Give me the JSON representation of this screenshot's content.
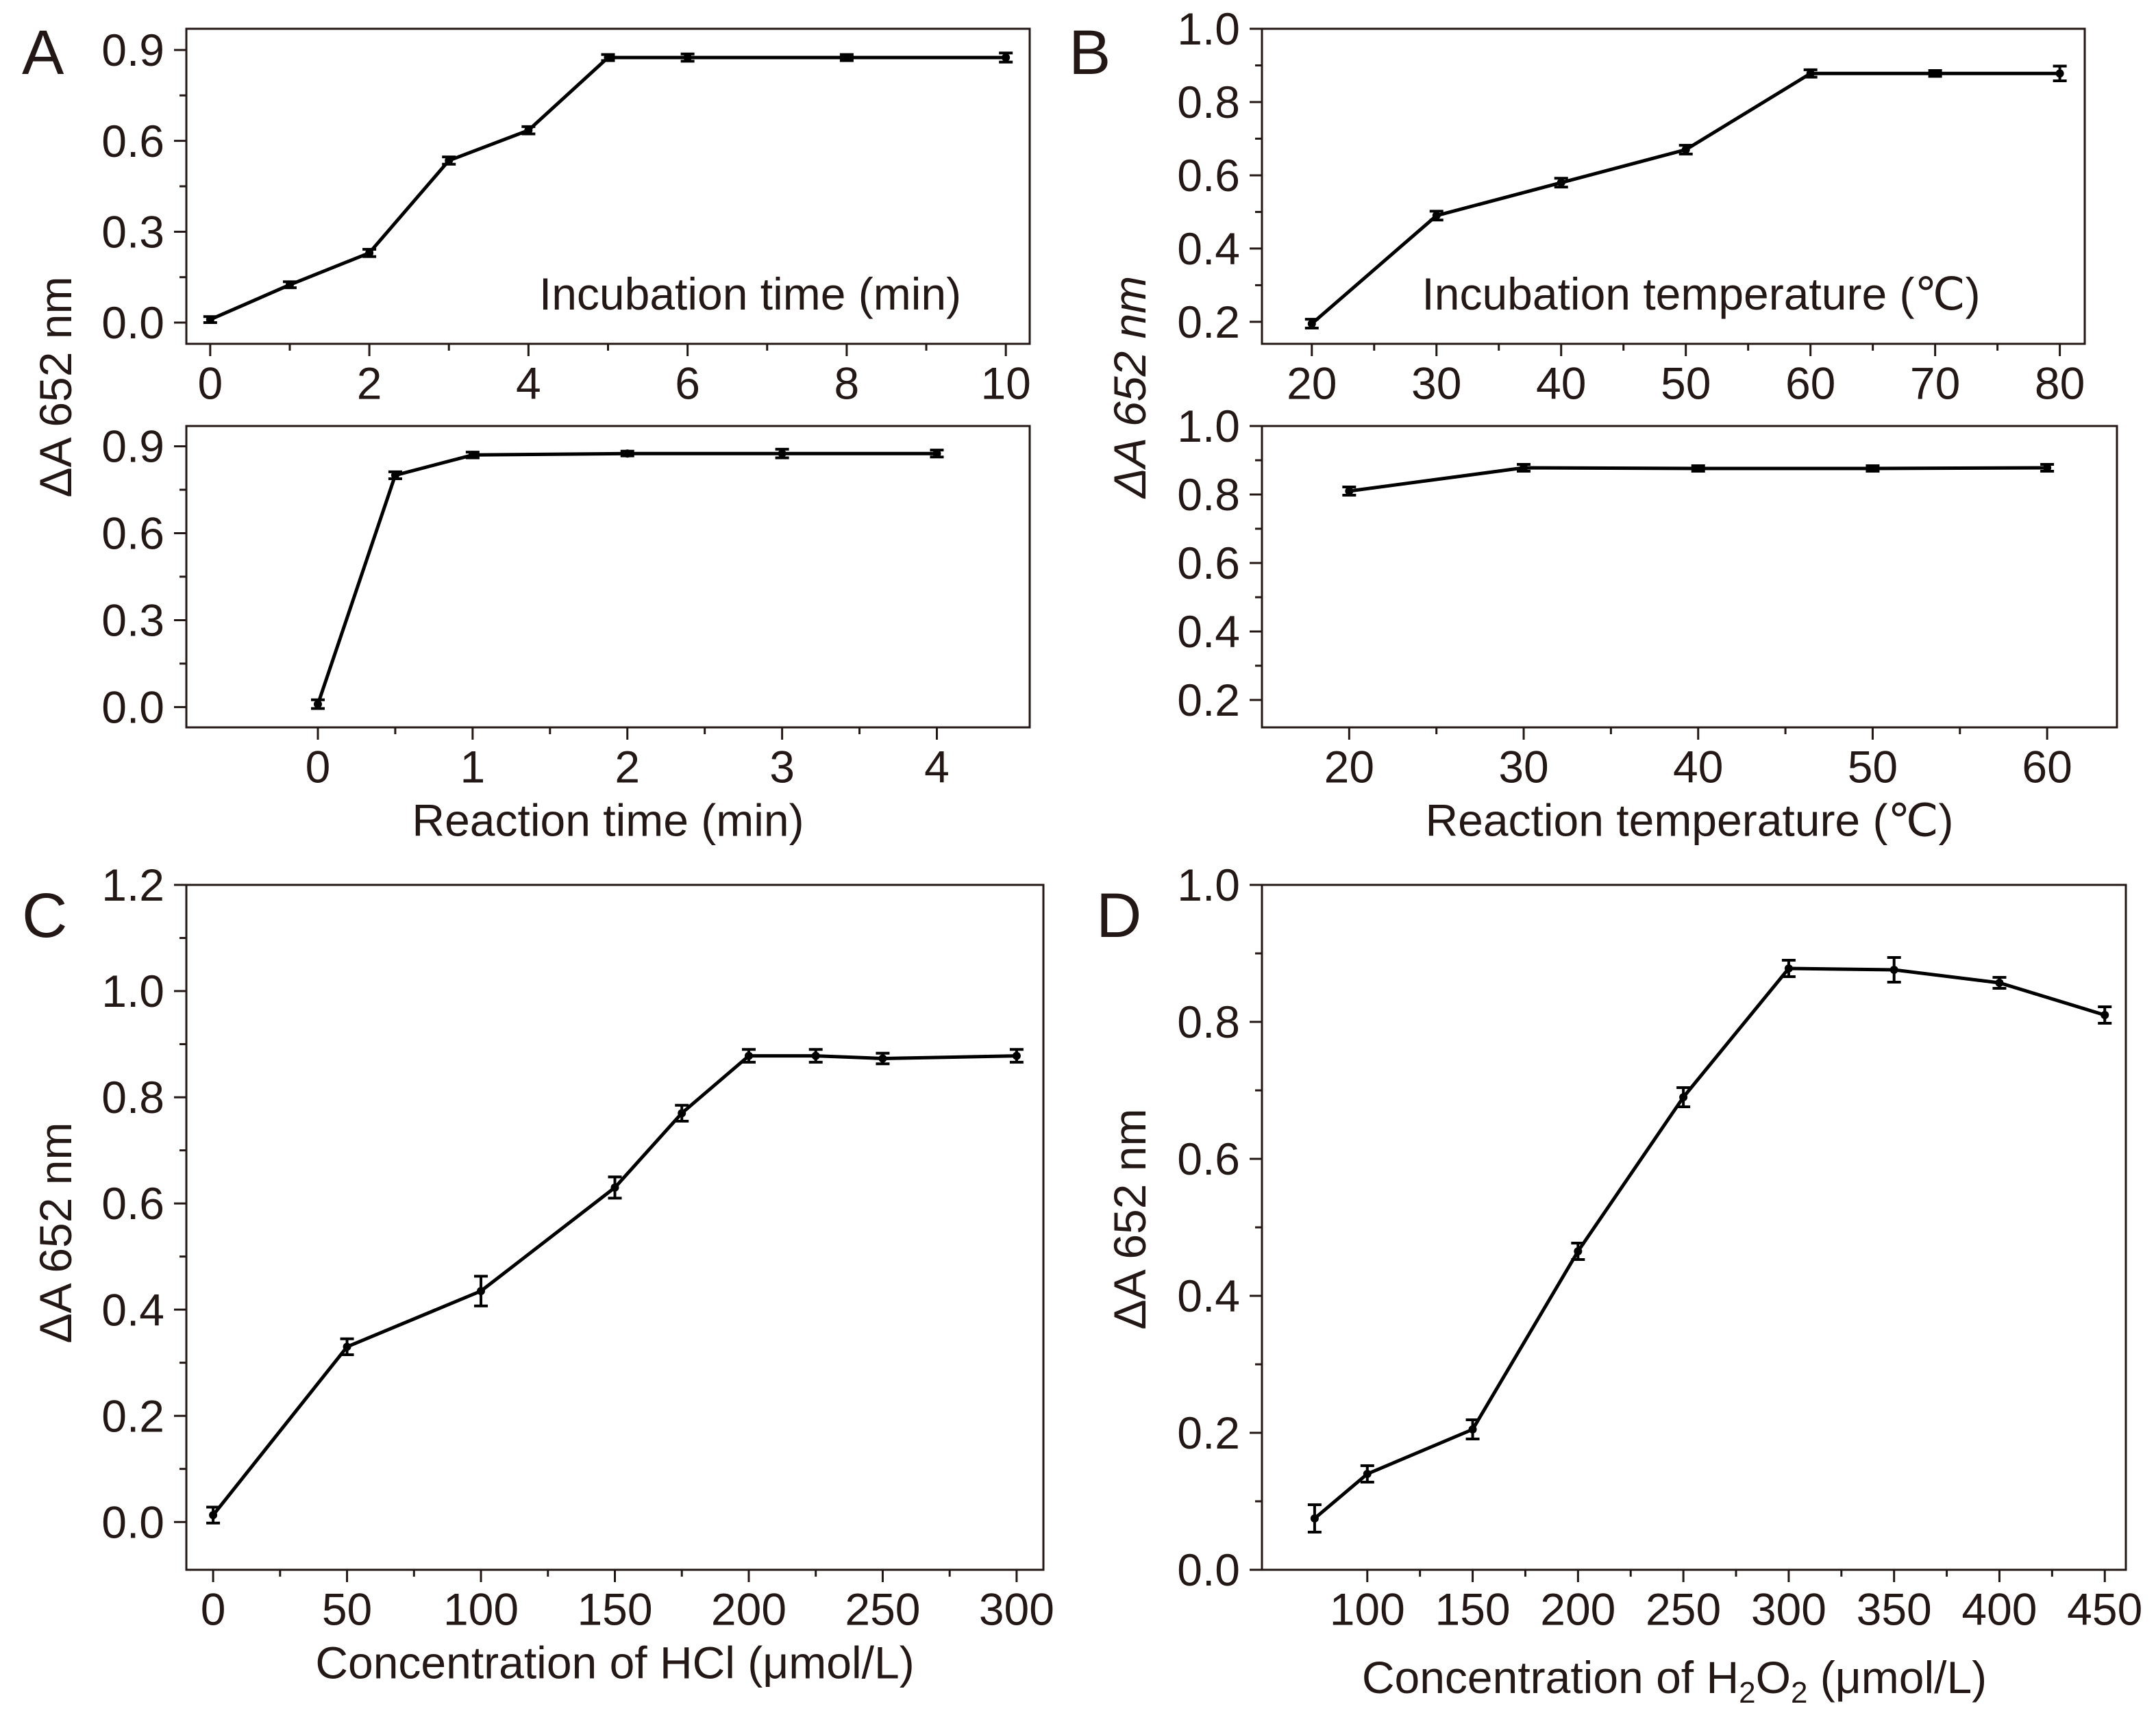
{
  "figure": {
    "panel_letters": [
      "A",
      "B",
      "C",
      "D"
    ]
  },
  "chart_data": [
    {
      "id": "A1",
      "panel": "A",
      "type": "line",
      "title": "",
      "inner_label": "Incubation time (min)",
      "xlabel": "",
      "ylabel": "ΔA 652 nm",
      "xlim": [
        -0.3,
        10.3
      ],
      "ylim": [
        -0.07,
        0.97
      ],
      "xticks": [
        0,
        2,
        4,
        6,
        8,
        10
      ],
      "yticks": [
        0.0,
        0.3,
        0.6,
        0.9
      ],
      "ytick_labels": [
        "0.0",
        "0.3",
        "0.6",
        "0.9"
      ],
      "x": [
        0,
        1,
        2,
        3,
        4,
        5,
        6,
        8,
        10
      ],
      "y": [
        0.01,
        0.125,
        0.23,
        0.535,
        0.635,
        0.875,
        0.875,
        0.875,
        0.875
      ],
      "err": [
        0.01,
        0.01,
        0.012,
        0.012,
        0.012,
        0.01,
        0.012,
        0.01,
        0.015
      ],
      "grid": false
    },
    {
      "id": "A2",
      "panel": "A",
      "type": "line",
      "title": "",
      "xlabel": "Reaction time (min)",
      "ylabel": "",
      "xlim": [
        -0.85,
        4.6
      ],
      "ylim": [
        -0.07,
        0.97
      ],
      "xticks": [
        0,
        1,
        2,
        3,
        4
      ],
      "yticks": [
        0.0,
        0.3,
        0.6,
        0.9
      ],
      "ytick_labels": [
        "0.0",
        "0.3",
        "0.6",
        "0.9"
      ],
      "x": [
        0,
        0.5,
        1,
        2,
        3,
        4
      ],
      "y": [
        0.01,
        0.8,
        0.87,
        0.875,
        0.875,
        0.875
      ],
      "err": [
        0.015,
        0.012,
        0.01,
        0.008,
        0.015,
        0.012
      ],
      "grid": false
    },
    {
      "id": "B1",
      "panel": "B",
      "type": "line",
      "title": "",
      "inner_label": "Incubation temperature (℃)",
      "xlabel": "",
      "ylabel": "ΔA 652 nm",
      "xlim": [
        16,
        82
      ],
      "ylim": [
        0.14,
        1.0
      ],
      "xticks": [
        20,
        30,
        40,
        50,
        60,
        70,
        80
      ],
      "yticks": [
        0.2,
        0.4,
        0.6,
        0.8,
        1.0
      ],
      "ytick_labels": [
        "0.2",
        "0.4",
        "0.6",
        "0.8",
        "1.0"
      ],
      "x": [
        20,
        30,
        40,
        50,
        60,
        70,
        80
      ],
      "y": [
        0.195,
        0.49,
        0.58,
        0.67,
        0.878,
        0.878,
        0.878
      ],
      "err": [
        0.012,
        0.012,
        0.012,
        0.012,
        0.01,
        0.008,
        0.02
      ],
      "grid": false
    },
    {
      "id": "B2",
      "panel": "B",
      "type": "line",
      "title": "",
      "xlabel": "Reaction temperature (℃)",
      "ylabel": "",
      "xlim": [
        15,
        64
      ],
      "ylim": [
        0.12,
        1.0
      ],
      "xticks": [
        20,
        30,
        40,
        50,
        60
      ],
      "yticks": [
        0.2,
        0.4,
        0.6,
        0.8,
        1.0
      ],
      "ytick_labels": [
        "0.2",
        "0.4",
        "0.6",
        "0.8",
        "1.0"
      ],
      "x": [
        20,
        30,
        40,
        50,
        60
      ],
      "y": [
        0.81,
        0.878,
        0.876,
        0.876,
        0.878
      ],
      "err": [
        0.012,
        0.01,
        0.008,
        0.008,
        0.01
      ],
      "grid": false
    },
    {
      "id": "C",
      "panel": "C",
      "type": "line",
      "title": "",
      "xlabel": "Concentration of HCl (μmol/L)",
      "ylabel": "ΔA 652 nm",
      "xlim": [
        -10,
        310
      ],
      "ylim": [
        -0.09,
        1.2
      ],
      "xticks": [
        0,
        50,
        100,
        150,
        200,
        250,
        300
      ],
      "yticks": [
        0.0,
        0.2,
        0.4,
        0.6,
        0.8,
        1.0,
        1.2
      ],
      "ytick_labels": [
        "0.0",
        "0.2",
        "0.4",
        "0.6",
        "0.8",
        "1.0",
        "1.2"
      ],
      "x": [
        0,
        50,
        100,
        150,
        175,
        200,
        225,
        250,
        300
      ],
      "y": [
        0.013,
        0.33,
        0.435,
        0.63,
        0.77,
        0.878,
        0.878,
        0.873,
        0.878
      ],
      "err": [
        0.015,
        0.015,
        0.028,
        0.02,
        0.015,
        0.012,
        0.012,
        0.01,
        0.012
      ],
      "grid": false
    },
    {
      "id": "D",
      "panel": "D",
      "type": "line",
      "title": "",
      "xlabel": "Concentration of H2O2 (μmol/L)",
      "xlabel_parts": {
        "pre": "Concentration of H",
        "sub1": "2",
        "mid": "O",
        "sub2": "2",
        "post": " (μmol/L)"
      },
      "ylabel": "ΔA 652 nm",
      "xlim": [
        50,
        460
      ],
      "ylim": [
        0.0,
        1.0
      ],
      "xticks": [
        100,
        150,
        200,
        250,
        300,
        350,
        400,
        450
      ],
      "yticks": [
        0.0,
        0.2,
        0.4,
        0.6,
        0.8,
        1.0
      ],
      "ytick_labels": [
        "0.0",
        "0.2",
        "0.4",
        "0.6",
        "0.8",
        "1.0"
      ],
      "x": [
        75,
        100,
        150,
        200,
        250,
        300,
        350,
        400,
        450
      ],
      "y": [
        0.075,
        0.14,
        0.205,
        0.465,
        0.69,
        0.878,
        0.876,
        0.857,
        0.81
      ],
      "err": [
        0.02,
        0.012,
        0.014,
        0.012,
        0.014,
        0.012,
        0.018,
        0.008,
        0.012
      ],
      "grid": false
    }
  ]
}
